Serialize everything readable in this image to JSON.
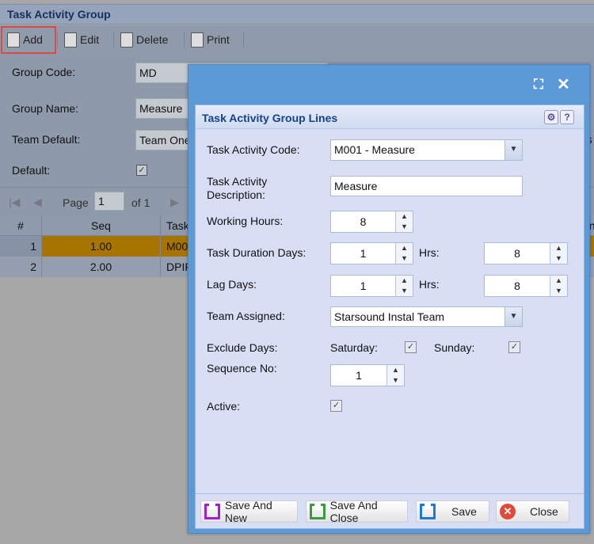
{
  "window": {
    "title": "Task Activity Group"
  },
  "toolbar": {
    "add": "Add",
    "edit": "Edit",
    "delete": "Delete",
    "print": "Print"
  },
  "form": {
    "group_code_label": "Group Code:",
    "group_code": "MD",
    "group_name_label": "Group Name:",
    "group_name": "Measure",
    "team_default_label": "Team Default:",
    "team_default": "Team One",
    "default_label": "Default:",
    "default_checked": true,
    "right_partial": "rs"
  },
  "pager": {
    "page_label": "Page",
    "page": "1",
    "of": "of 1"
  },
  "grid": {
    "headers": [
      "#",
      "Seq",
      "Task",
      "on"
    ],
    "rows": [
      {
        "n": "1",
        "seq": "1.00",
        "task": "M00",
        "tail": ")"
      },
      {
        "n": "2",
        "seq": "2.00",
        "task": "DPIF",
        "tail": ")"
      }
    ],
    "selected_color": "#b07a00"
  },
  "dialog": {
    "title": "Task Activity Group Lines",
    "code_label": "Task Activity Code:",
    "code": "M001 - Measure",
    "desc_label_1": "Task Activity",
    "desc_label_2": "Description:",
    "desc": "Measure",
    "hours_label": "Working Hours:",
    "hours": "8",
    "duration_label": "Task Duration Days:",
    "duration_days": "1",
    "hrs_label": "Hrs:",
    "duration_hrs": "8",
    "lag_label": "Lag Days:",
    "lag_days": "1",
    "lag_hrs": "8",
    "team_label": "Team Assigned:",
    "team": "Starsound Instal Team",
    "exclude_label": "Exclude Days:",
    "saturday": "Saturday:",
    "sunday": "Sunday:",
    "saturday_checked": true,
    "sunday_checked": true,
    "seq_label": "Sequence No:",
    "seq": "1",
    "active_label": "Active:",
    "active_checked": true,
    "buttons": {
      "save_new": "Save And New",
      "save_close": "Save And Close",
      "save": "Save",
      "close": "Close"
    }
  }
}
